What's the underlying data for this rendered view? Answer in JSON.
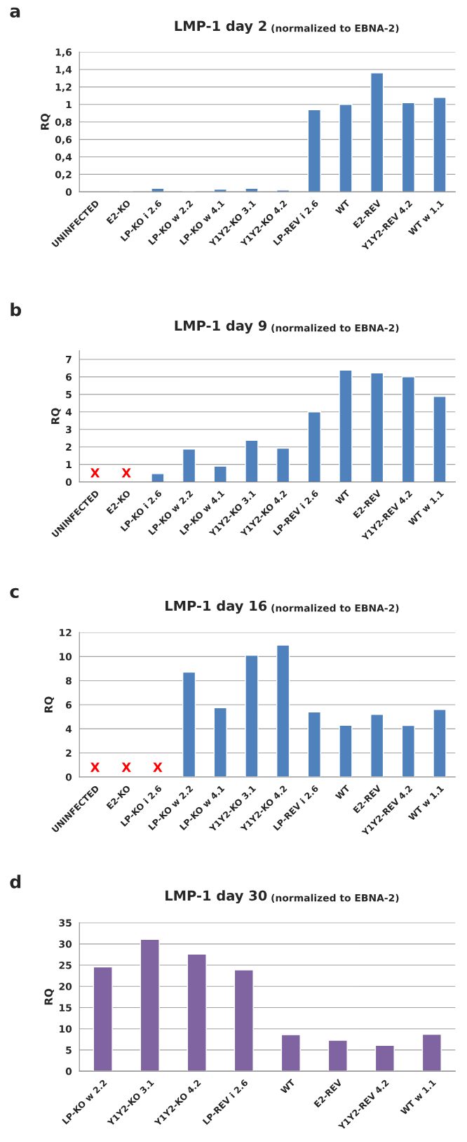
{
  "chart_data": [
    {
      "type": "bar",
      "title": "LMP-1 day 2",
      "subtitle": "(normalized to EBNA-2)",
      "ylabel": "RQ",
      "annotations": [
        "a"
      ],
      "categories": [
        "UNINFECTED",
        "E2-KO",
        "LP-KO i 2.6",
        "LP-KO w 2.2",
        "LP-KO w 4.1",
        "Y1Y2-KO 3.1",
        "Y1Y2-KO 4.2",
        "LP-REV i 2.6",
        "WT",
        "E2-REV",
        "Y1Y2-REV 4.2",
        "WT w 1.1"
      ],
      "values": [
        null,
        0.01,
        0.04,
        0.01,
        0.03,
        0.04,
        0.02,
        0.94,
        1.0,
        1.36,
        1.02,
        1.08
      ],
      "color": "#4f81bd",
      "ylim": [
        0,
        1.6
      ],
      "yticks": [
        0,
        {
          "value": 0.2,
          "label": "0,2"
        },
        {
          "value": 0.4,
          "label": "0,4"
        },
        {
          "value": 0.6,
          "label": "0,6"
        },
        {
          "value": 0.8,
          "label": "0,8"
        },
        1,
        {
          "value": 1.2,
          "label": "1,2"
        },
        {
          "value": 1.4,
          "label": "1,4"
        },
        {
          "value": 1.6,
          "label": "1,6"
        }
      ],
      "grid": "y",
      "legend": false
    },
    {
      "type": "bar",
      "title": "LMP-1 day 9",
      "subtitle": "(normalized to EBNA-2)",
      "ylabel": "RQ",
      "annotations": [
        "b",
        "X",
        "X"
      ],
      "categories": [
        "UNINFECTED",
        "E2-KO",
        "LP-KO i 2.6",
        "LP-KO w 2.2",
        "LP-KO w 4.1",
        "Y1Y2-KO 3.1",
        "Y1Y2-KO 4.2",
        "LP-REV i 2.6",
        "WT",
        "E2-REV",
        "Y1Y2-REV 4.2",
        "WT w 1.1"
      ],
      "values": [
        null,
        null,
        0.47,
        1.88,
        0.9,
        2.38,
        1.93,
        4.0,
        6.38,
        6.22,
        6.0,
        4.88
      ],
      "color": "#4f81bd",
      "ylim": [
        0,
        7.5
      ],
      "yticks": [
        0,
        1,
        2,
        3,
        4,
        5,
        6,
        7
      ],
      "grid": "y",
      "legend": false
    },
    {
      "type": "bar",
      "title": "LMP-1 day 16",
      "subtitle": "(normalized to EBNA-2)",
      "ylabel": "RQ",
      "annotations": [
        "c",
        "X",
        "X",
        "X"
      ],
      "categories": [
        "UNINFECTED",
        "E2-KO",
        "LP-KO i 2.6",
        "LP-KO w 2.2",
        "LP-KO w 4.1",
        "Y1Y2-KO 3.1",
        "Y1Y2-KO 4.2",
        "LP-REV i 2.6",
        "WT",
        "E2-REV",
        "Y1Y2-REV 4.2",
        "WT w 1.1"
      ],
      "values": [
        null,
        null,
        null,
        8.7,
        5.75,
        10.1,
        10.95,
        5.4,
        4.3,
        5.2,
        4.28,
        5.6
      ],
      "color": "#4f81bd",
      "ylim": [
        0,
        12
      ],
      "yticks": [
        0,
        2,
        4,
        6,
        8,
        10,
        12
      ],
      "grid": "y",
      "legend": false
    },
    {
      "type": "bar",
      "title": "LMP-1 day 30",
      "subtitle": "(normalized to EBNA-2)",
      "ylabel": "RQ",
      "annotations": [
        "d"
      ],
      "categories": [
        "LP-KO w 2.2",
        "Y1Y2-KO 3.1",
        "Y1Y2-KO 4.2",
        "LP-REV i 2.6",
        "WT",
        "E2-REV",
        "Y1Y2-REV 4.2",
        "WT w 1.1"
      ],
      "values": [
        24.6,
        31.1,
        27.6,
        23.9,
        8.6,
        7.3,
        6.1,
        8.7
      ],
      "color": "#8064a2",
      "ylim": [
        0,
        35
      ],
      "yticks": [
        0,
        5,
        10,
        15,
        20,
        25,
        30,
        35
      ],
      "grid": "y",
      "legend": false
    }
  ]
}
